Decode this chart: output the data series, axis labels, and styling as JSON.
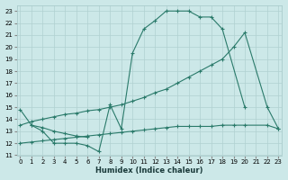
{
  "bg_color": "#cce8e8",
  "line_color": "#2a7a6a",
  "xlabel": "Humidex (Indice chaleur)",
  "xlim": [
    -0.3,
    23.3
  ],
  "ylim": [
    11,
    23.5
  ],
  "xticks": [
    0,
    1,
    2,
    3,
    4,
    5,
    6,
    7,
    8,
    9,
    10,
    11,
    12,
    13,
    14,
    15,
    16,
    17,
    18,
    19,
    20,
    21,
    22,
    23
  ],
  "yticks": [
    11,
    12,
    13,
    14,
    15,
    16,
    17,
    18,
    19,
    20,
    21,
    22,
    23
  ],
  "series": [
    {
      "x": [
        0,
        1,
        2,
        3,
        4,
        5,
        6,
        7,
        8,
        9,
        10,
        11,
        12,
        13,
        14,
        15,
        16,
        17,
        18,
        20
      ],
      "y": [
        14.8,
        13.5,
        13.0,
        12.0,
        12.0,
        12.0,
        11.8,
        11.3,
        15.2,
        13.2,
        19.5,
        21.5,
        22.2,
        23.0,
        23.0,
        23.0,
        22.5,
        22.5,
        21.5,
        15.0
      ]
    },
    {
      "x": [
        0,
        1,
        2,
        3,
        4,
        5,
        6,
        7,
        8,
        9,
        10,
        11,
        12,
        13,
        14,
        15,
        16,
        17,
        18,
        19,
        20,
        22,
        23
      ],
      "y": [
        12.0,
        12.1,
        12.2,
        12.3,
        12.4,
        12.5,
        12.6,
        12.7,
        12.8,
        12.9,
        13.0,
        13.1,
        13.2,
        13.3,
        13.4,
        13.4,
        13.4,
        13.4,
        13.5,
        13.5,
        13.5,
        13.5,
        13.2
      ]
    },
    {
      "x": [
        0,
        1,
        2,
        3,
        4,
        5,
        6,
        7,
        8,
        9,
        10,
        11,
        12,
        13,
        14,
        15,
        16,
        17,
        18,
        19,
        20,
        22,
        23
      ],
      "y": [
        13.5,
        13.8,
        14.0,
        14.2,
        14.4,
        14.5,
        14.7,
        14.8,
        15.0,
        15.2,
        15.5,
        15.8,
        16.2,
        16.5,
        17.0,
        17.5,
        18.0,
        18.5,
        19.0,
        20.0,
        21.2,
        15.0,
        13.2
      ]
    },
    {
      "x": [
        1,
        2,
        3,
        4,
        5,
        6
      ],
      "y": [
        13.5,
        13.3,
        13.0,
        12.8,
        12.6,
        12.5
      ]
    }
  ]
}
